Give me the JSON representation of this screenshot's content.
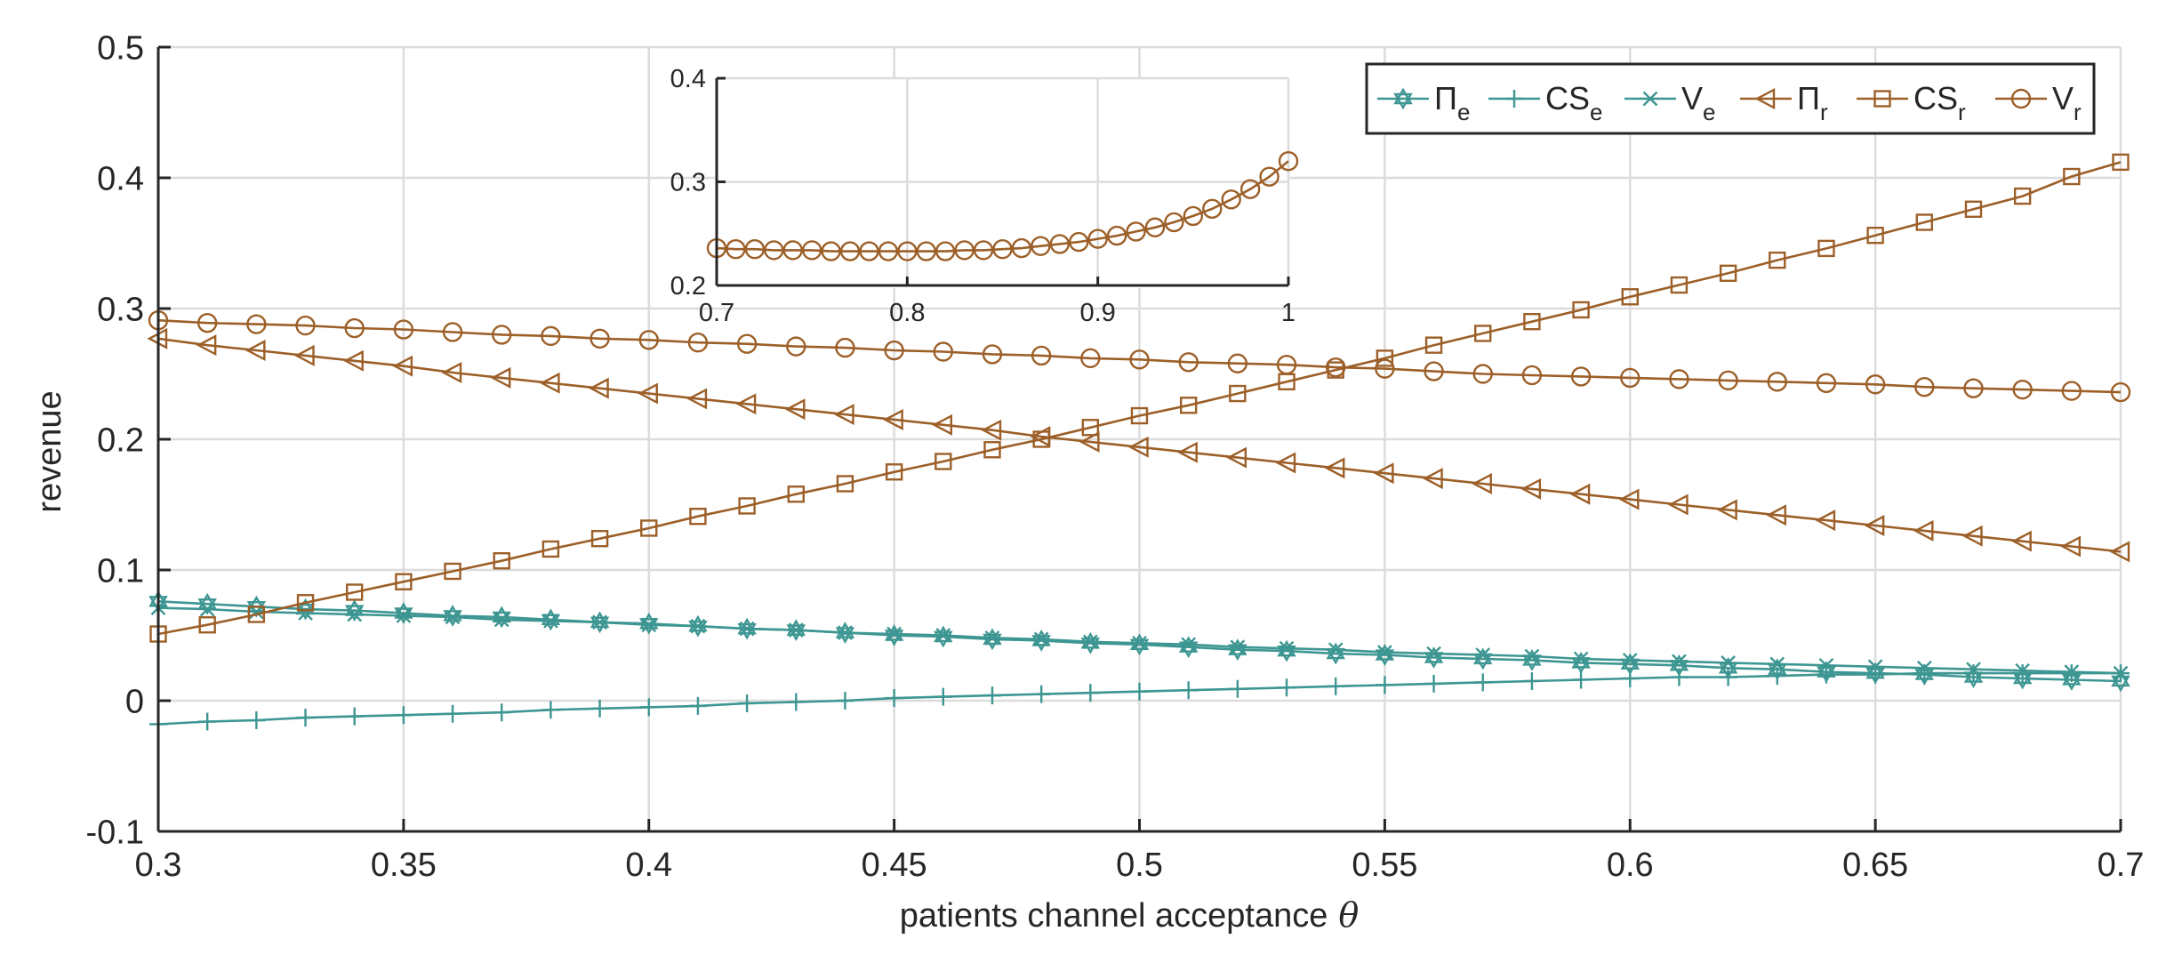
{
  "colors": {
    "teal": "#3d9692",
    "brown": "#9c5f28",
    "grid": "#dcdcdc",
    "axis": "#262626"
  },
  "chart_data": [
    {
      "type": "line",
      "xlabel": "patients channel acceptance",
      "xlabel_symbol": "θ",
      "ylabel": "revenue",
      "xlim": [
        0.3,
        0.7
      ],
      "ylim": [
        -0.1,
        0.5
      ],
      "xticks": [
        0.3,
        0.35,
        0.4,
        0.45,
        0.5,
        0.55,
        0.6,
        0.65,
        0.7
      ],
      "xtick_labels": [
        "0.3",
        "0.35",
        "0.4",
        "0.45",
        "0.5",
        "0.55",
        "0.6",
        "0.65",
        "0.7"
      ],
      "yticks": [
        -0.1,
        0,
        0.1,
        0.2,
        0.3,
        0.4,
        0.5
      ],
      "ytick_labels": [
        "-0.1",
        "0",
        "0.1",
        "0.2",
        "0.3",
        "0.4",
        "0.5"
      ],
      "grid": true,
      "legend_position": "top-right",
      "x": [
        0.3,
        0.31,
        0.32,
        0.33,
        0.34,
        0.35,
        0.36,
        0.37,
        0.38,
        0.39,
        0.4,
        0.41,
        0.42,
        0.43,
        0.44,
        0.45,
        0.46,
        0.47,
        0.48,
        0.49,
        0.5,
        0.51,
        0.52,
        0.53,
        0.54,
        0.55,
        0.56,
        0.57,
        0.58,
        0.59,
        0.6,
        0.61,
        0.62,
        0.63,
        0.64,
        0.65,
        0.66,
        0.67,
        0.68,
        0.69,
        0.7
      ],
      "series": [
        {
          "name": "Π_e",
          "base": "Π",
          "sub": "e",
          "color": "teal",
          "marker": "hexagram",
          "values": [
            0.076,
            0.074,
            0.072,
            0.07,
            0.069,
            0.067,
            0.065,
            0.064,
            0.062,
            0.06,
            0.059,
            0.057,
            0.055,
            0.054,
            0.052,
            0.05,
            0.049,
            0.047,
            0.046,
            0.044,
            0.043,
            0.041,
            0.039,
            0.038,
            0.036,
            0.035,
            0.033,
            0.032,
            0.031,
            0.029,
            0.028,
            0.027,
            0.025,
            0.024,
            0.022,
            0.021,
            0.02,
            0.018,
            0.017,
            0.016,
            0.015
          ]
        },
        {
          "name": "CS_e",
          "base": "CS",
          "sub": "e",
          "color": "teal",
          "marker": "plus",
          "values": [
            -0.018,
            -0.016,
            -0.015,
            -0.013,
            -0.012,
            -0.011,
            -0.01,
            -0.009,
            -0.007,
            -0.006,
            -0.005,
            -0.004,
            -0.002,
            -0.001,
            0.0,
            0.002,
            0.003,
            0.004,
            0.005,
            0.006,
            0.007,
            0.008,
            0.009,
            0.01,
            0.011,
            0.012,
            0.013,
            0.014,
            0.015,
            0.016,
            0.017,
            0.018,
            0.018,
            0.019,
            0.02,
            0.02,
            0.021,
            0.021,
            0.021,
            0.021,
            0.021
          ]
        },
        {
          "name": "V_e",
          "base": "V",
          "sub": "e",
          "color": "teal",
          "marker": "x",
          "values": [
            0.071,
            0.07,
            0.068,
            0.067,
            0.066,
            0.065,
            0.064,
            0.062,
            0.061,
            0.06,
            0.058,
            0.057,
            0.055,
            0.054,
            0.052,
            0.051,
            0.05,
            0.048,
            0.047,
            0.045,
            0.044,
            0.043,
            0.041,
            0.04,
            0.039,
            0.037,
            0.036,
            0.035,
            0.034,
            0.032,
            0.031,
            0.03,
            0.029,
            0.028,
            0.027,
            0.026,
            0.025,
            0.024,
            0.023,
            0.022,
            0.021
          ]
        },
        {
          "name": "Π_r",
          "base": "Π",
          "sub": "r",
          "color": "brown",
          "marker": "triangle-left",
          "values": [
            0.277,
            0.272,
            0.268,
            0.264,
            0.26,
            0.256,
            0.251,
            0.247,
            0.243,
            0.239,
            0.235,
            0.231,
            0.227,
            0.223,
            0.219,
            0.215,
            0.211,
            0.207,
            0.202,
            0.198,
            0.194,
            0.19,
            0.186,
            0.182,
            0.178,
            0.174,
            0.17,
            0.166,
            0.162,
            0.158,
            0.154,
            0.15,
            0.146,
            0.142,
            0.138,
            0.134,
            0.13,
            0.126,
            0.122,
            0.118,
            0.114
          ]
        },
        {
          "name": "CS_r",
          "base": "CS",
          "sub": "r",
          "color": "brown",
          "marker": "square",
          "values": [
            0.051,
            0.058,
            0.066,
            0.075,
            0.083,
            0.091,
            0.099,
            0.107,
            0.116,
            0.124,
            0.132,
            0.141,
            0.149,
            0.158,
            0.166,
            0.175,
            0.183,
            0.192,
            0.2,
            0.209,
            0.218,
            0.226,
            0.235,
            0.244,
            0.253,
            0.262,
            0.272,
            0.281,
            0.29,
            0.299,
            0.309,
            0.318,
            0.327,
            0.337,
            0.346,
            0.356,
            0.366,
            0.376,
            0.386,
            0.401,
            0.412
          ]
        },
        {
          "name": "V_r",
          "base": "V",
          "sub": "r",
          "color": "brown",
          "marker": "circle",
          "values": [
            0.291,
            0.289,
            0.288,
            0.287,
            0.285,
            0.284,
            0.282,
            0.28,
            0.279,
            0.277,
            0.276,
            0.274,
            0.273,
            0.271,
            0.27,
            0.268,
            0.267,
            0.265,
            0.264,
            0.262,
            0.261,
            0.259,
            0.258,
            0.257,
            0.255,
            0.254,
            0.252,
            0.25,
            0.249,
            0.248,
            0.247,
            0.246,
            0.245,
            0.244,
            0.243,
            0.242,
            0.24,
            0.239,
            0.238,
            0.237,
            0.236
          ]
        }
      ]
    },
    {
      "type": "line",
      "role": "inset",
      "xlim": [
        0.7,
        1.0
      ],
      "ylim": [
        0.2,
        0.4
      ],
      "xticks": [
        0.7,
        0.8,
        0.9,
        1.0
      ],
      "xtick_labels": [
        "0.7",
        "0.8",
        "0.9",
        "1"
      ],
      "yticks": [
        0.2,
        0.3,
        0.4
      ],
      "ytick_labels": [
        "0.2",
        "0.3",
        "0.4"
      ],
      "grid": true,
      "x": [
        0.7,
        0.71,
        0.72,
        0.73,
        0.74,
        0.75,
        0.76,
        0.77,
        0.78,
        0.79,
        0.8,
        0.81,
        0.82,
        0.83,
        0.84,
        0.85,
        0.86,
        0.87,
        0.88,
        0.89,
        0.9,
        0.91,
        0.92,
        0.93,
        0.94,
        0.95,
        0.96,
        0.97,
        0.98,
        0.99,
        1.0
      ],
      "series": [
        {
          "name": "V_r",
          "color": "brown",
          "marker": "circle",
          "values": [
            0.236,
            0.235,
            0.235,
            0.234,
            0.234,
            0.234,
            0.233,
            0.233,
            0.233,
            0.233,
            0.233,
            0.233,
            0.233,
            0.234,
            0.234,
            0.235,
            0.236,
            0.238,
            0.24,
            0.242,
            0.245,
            0.248,
            0.252,
            0.256,
            0.261,
            0.267,
            0.274,
            0.283,
            0.293,
            0.305,
            0.32
          ]
        }
      ]
    }
  ]
}
